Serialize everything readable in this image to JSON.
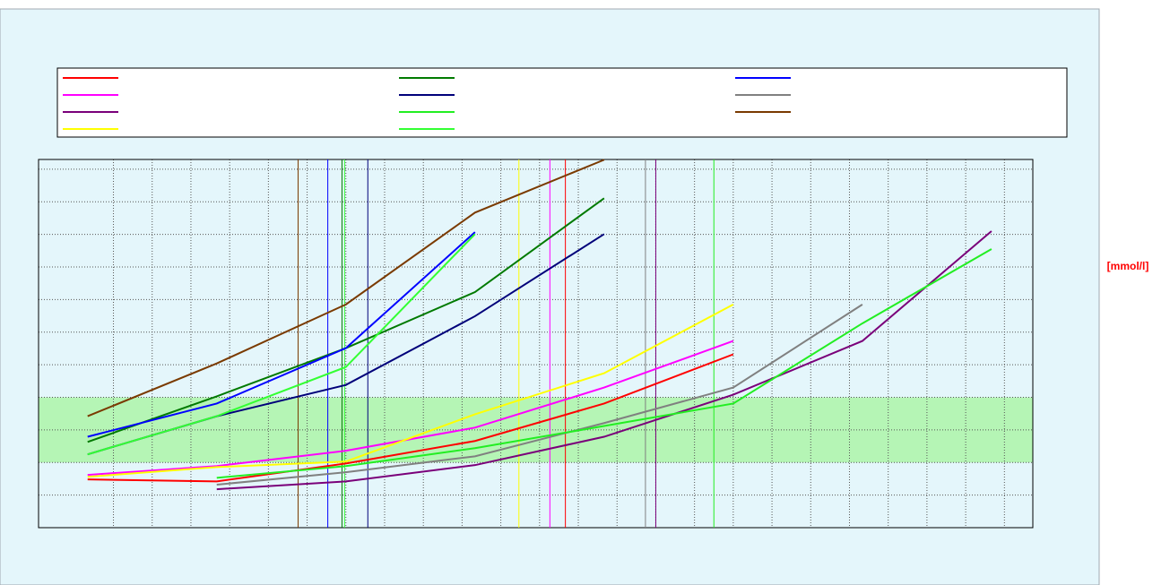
{
  "chart_data": {
    "type": "line",
    "y_unit_label": "[mmol/l]",
    "x": [
      0,
      1,
      2,
      3,
      4,
      5,
      6,
      7
    ],
    "xlim": [
      -0.38,
      7.32
    ],
    "ylim": [
      0,
      11.3
    ],
    "xticks": [
      0.2,
      0.5,
      0.8,
      1.1,
      1.4,
      1.7,
      2.0,
      2.3,
      2.6,
      2.9,
      3.2,
      3.5,
      3.8,
      4.1,
      4.4,
      4.7,
      5.0,
      5.3,
      5.6,
      5.9,
      6.2,
      6.5,
      6.8,
      7.1
    ],
    "yticks": [
      1,
      2,
      3,
      4,
      5,
      6,
      7,
      8,
      9,
      10,
      11
    ],
    "grid": true,
    "shaded_range": [
      2,
      4
    ],
    "shaded_color": "#b5f5b5",
    "series": [
      {
        "color": "#ff0000",
        "values": [
          1.48,
          1.42,
          1.97,
          2.66,
          3.81,
          5.32,
          null,
          null
        ],
        "marker_x": 3.7
      },
      {
        "color": "#007a00",
        "values": [
          2.63,
          4.03,
          5.51,
          7.23,
          10.11,
          null,
          null,
          null
        ],
        "marker_x": 1.97
      },
      {
        "color": "#0000ff",
        "values": [
          2.79,
          3.81,
          5.51,
          9.07,
          null,
          null,
          null,
          null
        ],
        "marker_x": 1.86
      },
      {
        "color": "#ff00ff",
        "values": [
          1.62,
          1.89,
          2.36,
          3.07,
          4.3,
          5.73,
          null,
          null
        ],
        "marker_x": 3.58
      },
      {
        "color": "#00007a",
        "values": [
          2.25,
          3.42,
          4.38,
          6.49,
          9.01,
          null,
          null,
          null
        ],
        "marker_x": 2.17
      },
      {
        "color": "#808080",
        "values": [
          null,
          1.32,
          1.7,
          2.19,
          3.21,
          4.3,
          6.85,
          null
        ],
        "marker_x": 4.32
      },
      {
        "color": "#7a007a",
        "values": [
          null,
          1.18,
          1.42,
          1.92,
          2.79,
          4.08,
          5.73,
          9.1
        ],
        "marker_x": 4.4
      },
      {
        "color": "#22ee22",
        "values": [
          null,
          1.53,
          1.89,
          2.44,
          3.12,
          3.81,
          6.27,
          8.55
        ],
        "marker_x": 4.85
      },
      {
        "color": "#7a3a00",
        "values": [
          3.42,
          5.04,
          6.85,
          9.67,
          11.29,
          null,
          null,
          null
        ],
        "marker_x": 1.63
      },
      {
        "color": "#ffff00",
        "values": [
          1.56,
          1.86,
          2.03,
          3.48,
          4.74,
          6.85,
          null,
          null
        ],
        "marker_x": 3.34
      },
      {
        "color": "#33ff33",
        "values": [
          2.25,
          3.42,
          4.93,
          9.01,
          null,
          null,
          null,
          null
        ],
        "marker_x": 1.99
      }
    ]
  }
}
